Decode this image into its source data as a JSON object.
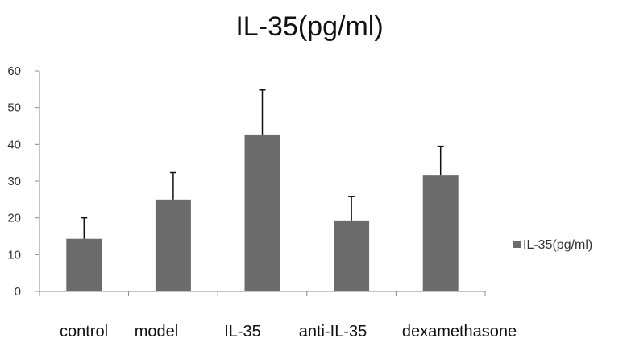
{
  "chart_data": {
    "type": "bar",
    "title": "IL-35(pg/ml)",
    "categories": [
      "control",
      "model",
      "IL-35",
      "anti-IL-35",
      "dexamethasone"
    ],
    "series": [
      {
        "name": "IL-35(pg/ml)",
        "values": [
          14.3,
          25.0,
          42.5,
          19.3,
          31.5
        ],
        "error_plus": [
          5.7,
          7.3,
          12.3,
          6.5,
          8.0
        ]
      }
    ],
    "ylim": [
      0,
      60
    ],
    "yticks": [
      0,
      10,
      20,
      30,
      40,
      50,
      60
    ],
    "xlabel": "",
    "ylabel": "",
    "legend_position": "right",
    "bar_color": "#6b6b6b"
  }
}
